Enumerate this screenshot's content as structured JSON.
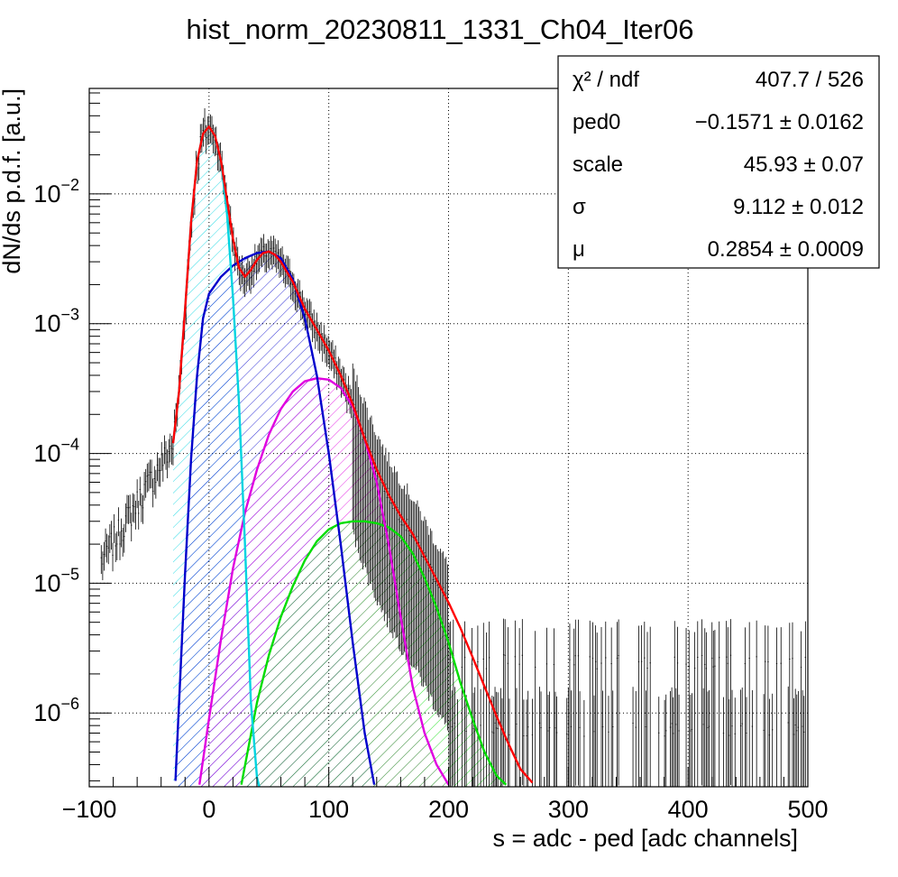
{
  "chart_data": {
    "type": "line",
    "title": "hist_norm_20230811_1331_Ch04_Iter06",
    "xlabel": "s = adc - ped [adc channels]",
    "ylabel": "dN/ds p.d.f. [a.u.]",
    "xlim": [
      -100,
      500
    ],
    "ylim": [
      2.7e-07,
      0.065
    ],
    "yscale": "log",
    "grid": true,
    "x_ticks": [
      {
        "value": -100,
        "label": "−100"
      },
      {
        "value": 0,
        "label": "0"
      },
      {
        "value": 100,
        "label": "100"
      },
      {
        "value": 200,
        "label": "200"
      },
      {
        "value": 300,
        "label": "300"
      },
      {
        "value": 400,
        "label": "400"
      },
      {
        "value": 500,
        "label": "500"
      }
    ],
    "y_ticks": [
      {
        "value": 1e-06,
        "base": "10",
        "exp": "−6"
      },
      {
        "value": 1e-05,
        "base": "10",
        "exp": "−5"
      },
      {
        "value": 0.0001,
        "base": "10",
        "exp": "−4"
      },
      {
        "value": 0.001,
        "base": "10",
        "exp": "−3"
      },
      {
        "value": 0.01,
        "base": "10",
        "exp": "−2"
      }
    ],
    "stats_box": {
      "placement": "top-right",
      "rows": [
        {
          "label": "χ² / ndf",
          "value": "407.7 / 526"
        },
        {
          "label": "ped0",
          "value": "−0.1571 ± 0.0162"
        },
        {
          "label": "scale",
          "value": "45.93 ± 0.07"
        },
        {
          "label": "σ",
          "value": "9.112 ± 0.012"
        },
        {
          "label": "μ",
          "value": "0.2854 ± 0.0009"
        }
      ]
    },
    "histogram_color": "#000000",
    "series": [
      {
        "color": "#ff0000",
        "hatch": false,
        "points": [
          [
            -30,
            0.00012
          ],
          [
            -25,
            0.0003
          ],
          [
            -20,
            0.0013
          ],
          [
            -15,
            0.006
          ],
          [
            -10,
            0.018
          ],
          [
            -5,
            0.029
          ],
          [
            0,
            0.033
          ],
          [
            5,
            0.028
          ],
          [
            10,
            0.018
          ],
          [
            15,
            0.009
          ],
          [
            20,
            0.0045
          ],
          [
            25,
            0.0027
          ],
          [
            30,
            0.0023
          ],
          [
            35,
            0.0026
          ],
          [
            40,
            0.0031
          ],
          [
            45,
            0.0035
          ],
          [
            50,
            0.0036
          ],
          [
            55,
            0.0034
          ],
          [
            60,
            0.003
          ],
          [
            70,
            0.0021
          ],
          [
            80,
            0.0013
          ],
          [
            90,
            0.0009
          ],
          [
            100,
            0.00062
          ],
          [
            110,
            0.0004
          ],
          [
            120,
            0.00024
          ],
          [
            130,
            0.00013
          ],
          [
            140,
            7.5e-05
          ],
          [
            150,
            4.8e-05
          ],
          [
            160,
            3.3e-05
          ],
          [
            170,
            2.4e-05
          ],
          [
            180,
            1.6e-05
          ],
          [
            190,
            1.07e-05
          ],
          [
            200,
            7.1e-06
          ],
          [
            210,
            4.5e-06
          ],
          [
            220,
            2.7e-06
          ],
          [
            230,
            1.6e-06
          ],
          [
            240,
            9.5e-07
          ],
          [
            250,
            5.8e-07
          ],
          [
            260,
            3.7e-07
          ],
          [
            270,
            2.9e-07
          ]
        ]
      },
      {
        "color": "#00d4e0",
        "hatch": true,
        "points": [
          [
            -30,
            0.00012
          ],
          [
            -25,
            0.0003
          ],
          [
            -20,
            0.0013
          ],
          [
            -15,
            0.006
          ],
          [
            -10,
            0.018
          ],
          [
            -5,
            0.029
          ],
          [
            0,
            0.033
          ],
          [
            5,
            0.028
          ],
          [
            10,
            0.018
          ],
          [
            15,
            0.007
          ],
          [
            20,
            0.0016
          ],
          [
            25,
            0.00025
          ],
          [
            30,
            2e-05
          ],
          [
            35,
            1.2e-06
          ],
          [
            40,
            3.2e-07
          ],
          [
            42,
            2.7e-07
          ]
        ]
      },
      {
        "color": "#0000cc",
        "hatch": true,
        "points": [
          [
            -28,
            3e-07
          ],
          [
            -25,
            1.2e-06
          ],
          [
            -20,
            1.2e-05
          ],
          [
            -15,
            9e-05
          ],
          [
            -10,
            0.0004
          ],
          [
            -5,
            0.0011
          ],
          [
            0,
            0.0017
          ],
          [
            10,
            0.0023
          ],
          [
            20,
            0.0028
          ],
          [
            30,
            0.0032
          ],
          [
            40,
            0.0035
          ],
          [
            50,
            0.0036
          ],
          [
            60,
            0.0032
          ],
          [
            70,
            0.0022
          ],
          [
            80,
            0.0011
          ],
          [
            90,
            0.0004
          ],
          [
            100,
            0.0001
          ],
          [
            110,
            2e-05
          ],
          [
            120,
            3.5e-06
          ],
          [
            130,
            7e-07
          ],
          [
            138,
            2.8e-07
          ]
        ]
      },
      {
        "color": "#e000e0",
        "hatch": true,
        "points": [
          [
            -8,
            2.8e-07
          ],
          [
            0,
            9e-07
          ],
          [
            10,
            3.7e-06
          ],
          [
            20,
            1.3e-05
          ],
          [
            30,
            3.5e-05
          ],
          [
            40,
            7.5e-05
          ],
          [
            50,
            0.00014
          ],
          [
            60,
            0.00022
          ],
          [
            70,
            0.0003
          ],
          [
            80,
            0.00036
          ],
          [
            90,
            0.00038
          ],
          [
            100,
            0.00037
          ],
          [
            110,
            0.00032
          ],
          [
            120,
            0.00023
          ],
          [
            130,
            0.00013
          ],
          [
            140,
            6e-05
          ],
          [
            150,
            2e-05
          ],
          [
            160,
            5.5e-06
          ],
          [
            170,
            1.6e-06
          ],
          [
            180,
            7e-07
          ],
          [
            190,
            4e-07
          ],
          [
            200,
            2.8e-07
          ]
        ]
      },
      {
        "color": "#00dd00",
        "hatch": true,
        "points": [
          [
            27,
            2.8e-07
          ],
          [
            40,
            1.2e-06
          ],
          [
            50,
            2.8e-06
          ],
          [
            60,
            5.5e-06
          ],
          [
            70,
            9.5e-06
          ],
          [
            80,
            1.5e-05
          ],
          [
            90,
            2.1e-05
          ],
          [
            100,
            2.6e-05
          ],
          [
            110,
            2.9e-05
          ],
          [
            120,
            3e-05
          ],
          [
            130,
            3e-05
          ],
          [
            140,
            2.9e-05
          ],
          [
            150,
            2.7e-05
          ],
          [
            160,
            2.3e-05
          ],
          [
            170,
            1.7e-05
          ],
          [
            180,
            1.1e-05
          ],
          [
            190,
            6.5e-06
          ],
          [
            200,
            3.5e-06
          ],
          [
            210,
            1.7e-06
          ],
          [
            220,
            9e-07
          ],
          [
            230,
            5e-07
          ],
          [
            240,
            3.3e-07
          ],
          [
            248,
            2.8e-07
          ]
        ]
      }
    ]
  }
}
